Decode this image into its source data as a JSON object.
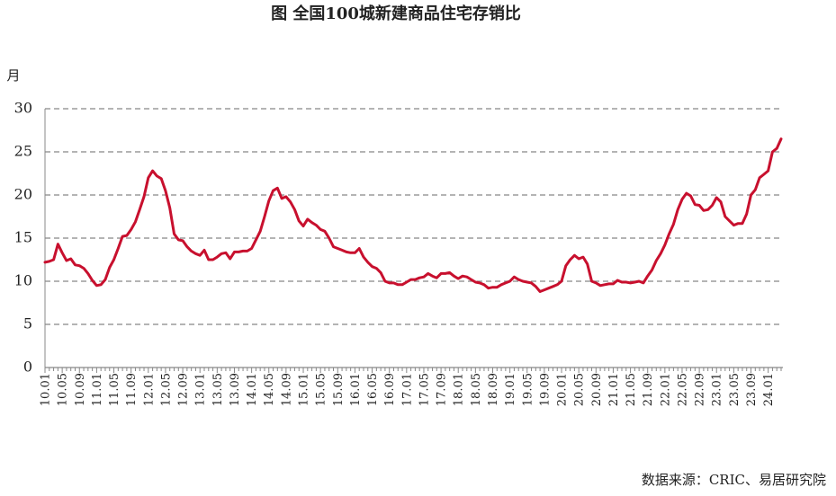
{
  "chart_data": {
    "type": "line",
    "title": "图 全国100城新建商品住宅存销比",
    "y_label": "月",
    "source": "数据来源：CRIC、易居研究院",
    "categories": [
      "10.01",
      null,
      null,
      null,
      "10.05",
      null,
      null,
      null,
      "10.09",
      null,
      null,
      null,
      "11.01",
      null,
      null,
      null,
      "11.05",
      null,
      null,
      null,
      "11.09",
      null,
      null,
      null,
      "12.01",
      null,
      null,
      null,
      "12.05",
      null,
      null,
      null,
      "12.09",
      null,
      null,
      null,
      "13.01",
      null,
      null,
      null,
      "13.05",
      null,
      null,
      null,
      "13.09",
      null,
      null,
      null,
      "14.01",
      null,
      null,
      null,
      "14.05",
      null,
      null,
      null,
      "14.09",
      null,
      null,
      null,
      "15.01",
      null,
      null,
      null,
      "15.05",
      null,
      null,
      null,
      "15.09",
      null,
      null,
      null,
      "16.01",
      null,
      null,
      null,
      "16.05",
      null,
      null,
      null,
      "16.09",
      null,
      null,
      null,
      "17.01",
      null,
      null,
      null,
      "17.05",
      null,
      null,
      null,
      "17.09",
      null,
      null,
      null,
      "18.01",
      null,
      null,
      null,
      "18.05",
      null,
      null,
      null,
      "18.09",
      null,
      null,
      null,
      "19.01",
      null,
      null,
      null,
      "19.05",
      null,
      null,
      null,
      "19.09",
      null,
      null,
      null,
      "20.01",
      null,
      null,
      null,
      "20.05",
      null,
      null,
      null,
      "20.09",
      null,
      null,
      null,
      "21.01",
      null,
      null,
      null,
      "21.05",
      null,
      null,
      null,
      "21.09",
      null,
      null,
      null,
      "22.01",
      null,
      null,
      null,
      "22.05",
      null,
      null,
      null,
      "22.09",
      null,
      null,
      null,
      "23.01",
      null,
      null,
      null,
      "23.05",
      null,
      null,
      null,
      "23.09",
      null,
      null,
      null,
      "24.01",
      null,
      null,
      null
    ],
    "series": [
      {
        "name": "存销比",
        "color": "#c8102e",
        "values": [
          12.2,
          12.3,
          12.5,
          14.3,
          13.3,
          12.4,
          12.6,
          11.9,
          11.8,
          11.5,
          10.9,
          10.1,
          9.5,
          9.6,
          10.2,
          11.6,
          12.5,
          13.8,
          15.2,
          15.3,
          16.0,
          16.9,
          18.3,
          19.8,
          22.0,
          22.8,
          22.2,
          21.9,
          20.5,
          18.5,
          15.5,
          14.8,
          14.7,
          14.0,
          13.5,
          13.2,
          13.0,
          13.6,
          12.5,
          12.5,
          12.8,
          13.2,
          13.3,
          12.6,
          13.4,
          13.4,
          13.5,
          13.5,
          13.8,
          14.8,
          15.8,
          17.5,
          19.3,
          20.5,
          20.8,
          19.6,
          19.8,
          19.2,
          18.3,
          17.0,
          16.4,
          17.2,
          16.8,
          16.5,
          16.0,
          15.8,
          15.0,
          14.0,
          13.8,
          13.6,
          13.4,
          13.3,
          13.3,
          13.8,
          12.8,
          12.2,
          11.7,
          11.5,
          11.0,
          10.0,
          9.8,
          9.8,
          9.6,
          9.6,
          9.9,
          10.2,
          10.2,
          10.4,
          10.5,
          10.9,
          10.6,
          10.4,
          10.9,
          10.9,
          11.0,
          10.6,
          10.3,
          10.6,
          10.5,
          10.2,
          9.9,
          9.8,
          9.6,
          9.2,
          9.3,
          9.3,
          9.6,
          9.8,
          10.0,
          10.5,
          10.2,
          10.0,
          9.9,
          9.8,
          9.4,
          8.8,
          9.0,
          9.2,
          9.4,
          9.6,
          10.0,
          11.8,
          12.5,
          13.0,
          12.6,
          12.8,
          12.0,
          10.0,
          9.8,
          9.5,
          9.6,
          9.7,
          9.7,
          10.1,
          9.9,
          9.9,
          9.8,
          9.9,
          10.0,
          9.8,
          10.6,
          11.3,
          12.4,
          13.2,
          14.2,
          15.5,
          16.6,
          18.3,
          19.5,
          20.2,
          19.9,
          18.9,
          18.8,
          18.2,
          18.3,
          18.8,
          19.7,
          19.2,
          17.5,
          17.0,
          16.5,
          16.7,
          16.7,
          17.8,
          20.0,
          20.6,
          22.0,
          22.4,
          22.8,
          25.0,
          25.4,
          26.5
        ]
      }
    ],
    "ylim": [
      0,
      30
    ],
    "yticks": [
      0,
      5,
      10,
      15,
      20,
      25,
      30
    ],
    "grid": true
  }
}
